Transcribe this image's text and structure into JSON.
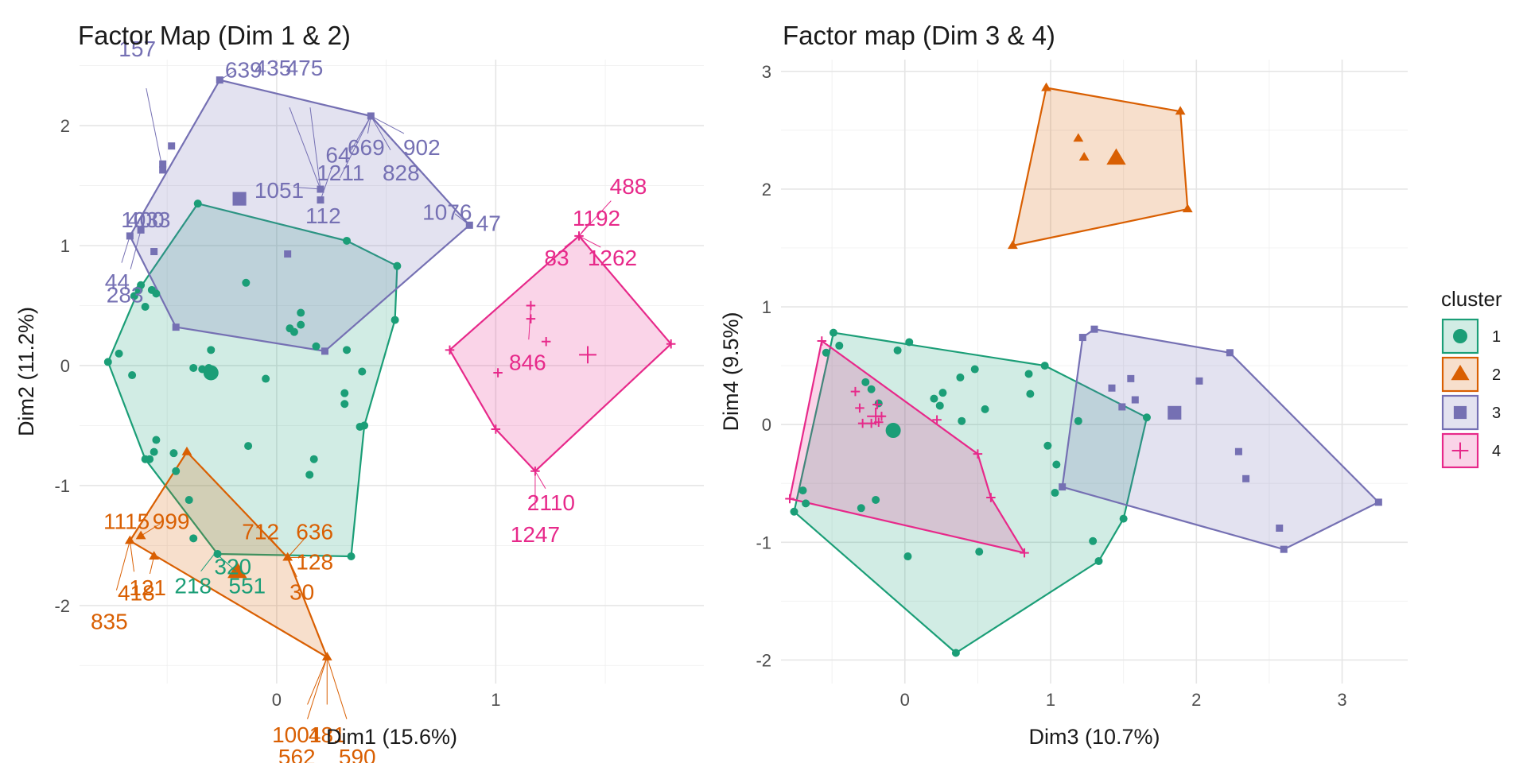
{
  "palette": {
    "1": "#1b9e77",
    "2": "#d95f02",
    "3": "#7570b3",
    "4": "#e7298a"
  },
  "shapes": {
    "1": "circle",
    "2": "triangle",
    "3": "square",
    "4": "cross"
  },
  "legend": {
    "title": "cluster",
    "items": [
      {
        "key": "1",
        "label": "1"
      },
      {
        "key": "2",
        "label": "2"
      },
      {
        "key": "3",
        "label": "3"
      },
      {
        "key": "4",
        "label": "4"
      }
    ]
  },
  "chart_data": [
    {
      "type": "scatter",
      "title": "Factor Map (Dim 1 & 2)",
      "xlabel": "Dim1 (15.6%)",
      "ylabel": "Dim2 (11.2%)",
      "xlim": [
        -0.9,
        1.95
      ],
      "ylim": [
        -2.65,
        2.55
      ],
      "xticks": [
        0,
        1
      ],
      "yticks": [
        -2,
        -1,
        0,
        1,
        2
      ],
      "grid": true,
      "clusters": [
        {
          "cluster": "1",
          "hull": [
            [
              -0.77,
              0.03
            ],
            [
              -0.6,
              -0.78
            ],
            [
              -0.27,
              -1.57
            ],
            [
              0.34,
              -1.59
            ],
            [
              0.4,
              -0.5
            ],
            [
              0.54,
              0.38
            ],
            [
              0.55,
              0.83
            ],
            [
              0.32,
              1.04
            ],
            [
              -0.36,
              1.35
            ],
            [
              -0.63,
              0.63
            ]
          ],
          "centroid": [
            -0.3,
            -0.06
          ],
          "points": [
            [
              -0.72,
              0.1
            ],
            [
              -0.63,
              0.63
            ],
            [
              -0.62,
              0.67
            ],
            [
              -0.57,
              0.63
            ],
            [
              -0.55,
              0.6
            ],
            [
              -0.65,
              0.58
            ],
            [
              -0.6,
              0.49
            ],
            [
              -0.66,
              -0.08
            ],
            [
              -0.38,
              -0.02
            ],
            [
              -0.34,
              -0.03
            ],
            [
              -0.3,
              0.13
            ],
            [
              -0.31,
              -0.02
            ],
            [
              -0.14,
              0.69
            ],
            [
              0.06,
              0.31
            ],
            [
              0.11,
              0.44
            ],
            [
              0.11,
              0.34
            ],
            [
              0.08,
              0.28
            ],
            [
              0.18,
              0.16
            ],
            [
              0.32,
              0.13
            ],
            [
              0.39,
              -0.05
            ],
            [
              -0.05,
              -0.11
            ],
            [
              0.31,
              -0.23
            ],
            [
              0.31,
              -0.32
            ],
            [
              0.38,
              -0.51
            ],
            [
              0.15,
              -0.91
            ],
            [
              0.17,
              -0.78
            ],
            [
              -0.13,
              -0.67
            ],
            [
              -0.55,
              -0.62
            ],
            [
              -0.56,
              -0.72
            ],
            [
              -0.47,
              -0.73
            ],
            [
              -0.46,
              -0.88
            ],
            [
              -0.58,
              -0.78
            ],
            [
              -0.4,
              -1.12
            ],
            [
              -0.38,
              -1.44
            ]
          ],
          "labels": [
            {
              "text": "218",
              "at": [
                -0.28,
                -1.56
              ]
            },
            {
              "text": "551",
              "at": [
                -0.28,
                -1.56
              ]
            },
            {
              "text": "320",
              "at": [
                -0.28,
                -1.56
              ]
            }
          ]
        },
        {
          "cluster": "2",
          "hull": [
            [
              -0.67,
              -1.46
            ],
            [
              -0.41,
              -0.72
            ],
            [
              0.05,
              -1.6
            ],
            [
              0.23,
              -2.43
            ]
          ],
          "centroid": [
            -0.18,
            -1.72
          ],
          "points": [
            [
              -0.62,
              -1.42
            ],
            [
              -0.56,
              -1.59
            ]
          ],
          "labels": [
            {
              "text": "1115",
              "at": [
                -0.62,
                -1.42
              ]
            },
            {
              "text": "999",
              "at": [
                -0.62,
                -1.42
              ]
            },
            {
              "text": "418",
              "at": [
                -0.67,
                -1.46
              ]
            },
            {
              "text": "835",
              "at": [
                -0.67,
                -1.46
              ]
            },
            {
              "text": "121",
              "at": [
                -0.56,
                -1.59
              ]
            },
            {
              "text": "712",
              "at": [
                0.05,
                -1.6
              ]
            },
            {
              "text": "636",
              "at": [
                0.05,
                -1.6
              ]
            },
            {
              "text": "128",
              "at": [
                0.05,
                -1.6
              ]
            },
            {
              "text": "30",
              "at": [
                0.05,
                -1.6
              ]
            },
            {
              "text": "1001",
              "at": [
                0.23,
                -2.43
              ]
            },
            {
              "text": "481",
              "at": [
                0.23,
                -2.43
              ]
            },
            {
              "text": "562",
              "at": [
                0.23,
                -2.43
              ]
            },
            {
              "text": "590",
              "at": [
                0.23,
                -2.43
              ]
            }
          ]
        },
        {
          "cluster": "3",
          "hull": [
            [
              -0.67,
              1.08
            ],
            [
              -0.26,
              2.38
            ],
            [
              0.43,
              2.08
            ],
            [
              0.88,
              1.17
            ],
            [
              0.22,
              0.12
            ],
            [
              -0.46,
              0.32
            ]
          ],
          "centroid": [
            -0.17,
            1.39
          ],
          "points": [
            [
              -0.48,
              1.83
            ],
            [
              -0.52,
              1.68
            ],
            [
              -0.52,
              1.63
            ],
            [
              -0.62,
              1.13
            ],
            [
              -0.56,
              0.95
            ],
            [
              0.05,
              0.93
            ],
            [
              0.2,
              1.38
            ],
            [
              0.2,
              1.47
            ]
          ],
          "labels": [
            {
              "text": "639",
              "at": [
                -0.26,
                2.38
              ]
            },
            {
              "text": "669",
              "at": [
                0.43,
                2.08
              ]
            },
            {
              "text": "902",
              "at": [
                0.43,
                2.08
              ]
            },
            {
              "text": "1211",
              "at": [
                0.43,
                2.08
              ]
            },
            {
              "text": "828",
              "at": [
                0.43,
                2.08
              ]
            },
            {
              "text": "112",
              "at": [
                0.43,
                2.08
              ]
            },
            {
              "text": "157",
              "at": [
                -0.52,
                1.63
              ]
            },
            {
              "text": "435",
              "at": [
                0.2,
                1.47
              ]
            },
            {
              "text": "475",
              "at": [
                0.2,
                1.47
              ]
            },
            {
              "text": "1051",
              "at": [
                0.2,
                1.47
              ]
            },
            {
              "text": "64",
              "at": [
                0.2,
                1.38
              ]
            },
            {
              "text": "1076",
              "at": [
                0.88,
                1.17
              ]
            },
            {
              "text": "47",
              "at": [
                0.88,
                1.17
              ]
            },
            {
              "text": "44",
              "at": [
                -0.67,
                1.08
              ]
            },
            {
              "text": "283",
              "at": [
                -0.62,
                1.13
              ]
            },
            {
              "text": "1033",
              "at": [
                -0.67,
                1.08
              ]
            },
            {
              "text": "400",
              "at": [
                -0.67,
                1.08
              ]
            }
          ]
        },
        {
          "cluster": "4",
          "hull": [
            [
              0.79,
              0.13
            ],
            [
              1.0,
              -0.53
            ],
            [
              1.18,
              -0.88
            ],
            [
              1.8,
              0.18
            ],
            [
              1.38,
              1.08
            ]
          ],
          "centroid": [
            1.42,
            0.09
          ],
          "points": [
            [
              1.16,
              0.5
            ],
            [
              1.16,
              0.39
            ],
            [
              1.23,
              0.2
            ],
            [
              1.01,
              -0.06
            ]
          ],
          "labels": [
            {
              "text": "488",
              "at": [
                1.38,
                1.08
              ]
            },
            {
              "text": "1192",
              "at": [
                1.38,
                1.08
              ]
            },
            {
              "text": "83",
              "at": [
                1.38,
                1.08
              ]
            },
            {
              "text": "1262",
              "at": [
                1.38,
                1.08
              ]
            },
            {
              "text": "846",
              "at": [
                1.16,
                0.5
              ]
            },
            {
              "text": "2110",
              "at": [
                1.18,
                -0.88
              ]
            },
            {
              "text": "1247",
              "at": [
                1.18,
                -0.88
              ]
            }
          ]
        }
      ]
    },
    {
      "type": "scatter",
      "title": "Factor map (Dim 3 & 4)",
      "xlabel": "Dim3 (10.7%)",
      "ylabel": "Dim4 (9.5%)",
      "xlim": [
        -0.85,
        3.45
      ],
      "ylim": [
        -2.2,
        3.1
      ],
      "xticks": [
        0,
        1,
        2,
        3
      ],
      "yticks": [
        -2,
        -1,
        0,
        1,
        2,
        3
      ],
      "grid": true,
      "clusters": [
        {
          "cluster": "1",
          "hull": [
            [
              -0.76,
              -0.74
            ],
            [
              -0.49,
              0.78
            ],
            [
              0.96,
              0.5
            ],
            [
              1.66,
              0.06
            ],
            [
              1.5,
              -0.8
            ],
            [
              1.33,
              -1.16
            ],
            [
              0.35,
              -1.94
            ]
          ],
          "centroid": [
            -0.08,
            -0.05
          ],
          "points": [
            [
              -0.54,
              0.61
            ],
            [
              -0.45,
              0.67
            ],
            [
              -0.7,
              -0.56
            ],
            [
              -0.68,
              -0.67
            ],
            [
              -0.27,
              0.36
            ],
            [
              -0.23,
              0.3
            ],
            [
              -0.18,
              0.18
            ],
            [
              0.03,
              0.7
            ],
            [
              -0.05,
              0.63
            ],
            [
              0.2,
              0.22
            ],
            [
              0.26,
              0.27
            ],
            [
              0.24,
              0.16
            ],
            [
              0.38,
              0.4
            ],
            [
              0.48,
              0.47
            ],
            [
              0.39,
              0.03
            ],
            [
              0.55,
              0.13
            ],
            [
              0.86,
              0.26
            ],
            [
              0.85,
              0.43
            ],
            [
              1.19,
              0.03
            ],
            [
              0.98,
              -0.18
            ],
            [
              1.04,
              -0.34
            ],
            [
              1.03,
              -0.58
            ],
            [
              1.29,
              -0.99
            ],
            [
              -0.3,
              -0.71
            ],
            [
              -0.2,
              -0.64
            ],
            [
              0.02,
              -1.12
            ],
            [
              0.51,
              -1.08
            ]
          ],
          "labels": []
        },
        {
          "cluster": "2",
          "hull": [
            [
              0.74,
              1.52
            ],
            [
              0.97,
              2.86
            ],
            [
              1.89,
              2.66
            ],
            [
              1.94,
              1.83
            ]
          ],
          "centroid": [
            1.45,
            2.26
          ],
          "points": [
            [
              1.19,
              2.43
            ],
            [
              1.23,
              2.27
            ]
          ],
          "labels": []
        },
        {
          "cluster": "3",
          "hull": [
            [
              1.08,
              -0.53
            ],
            [
              1.22,
              0.74
            ],
            [
              1.3,
              0.81
            ],
            [
              2.23,
              0.61
            ],
            [
              3.25,
              -0.66
            ],
            [
              2.6,
              -1.06
            ]
          ],
          "centroid": [
            1.85,
            0.1
          ],
          "points": [
            [
              1.42,
              0.31
            ],
            [
              1.55,
              0.39
            ],
            [
              1.58,
              0.21
            ],
            [
              1.49,
              0.15
            ],
            [
              2.02,
              0.37
            ],
            [
              2.29,
              -0.23
            ],
            [
              2.34,
              -0.46
            ],
            [
              2.57,
              -0.88
            ]
          ],
          "labels": []
        },
        {
          "cluster": "4",
          "hull": [
            [
              -0.79,
              -0.63
            ],
            [
              -0.57,
              0.71
            ],
            [
              0.5,
              -0.25
            ],
            [
              0.59,
              -0.62
            ],
            [
              0.82,
              -1.09
            ]
          ],
          "centroid": [
            -0.2,
            0.07
          ],
          "points": [
            [
              -0.34,
              0.28
            ],
            [
              -0.31,
              0.14
            ],
            [
              -0.29,
              0.01
            ],
            [
              -0.23,
              0.01
            ],
            [
              -0.19,
              0.17
            ],
            [
              -0.16,
              0.07
            ],
            [
              -0.18,
              0.02
            ],
            [
              0.22,
              0.04
            ]
          ],
          "labels": []
        }
      ]
    }
  ]
}
